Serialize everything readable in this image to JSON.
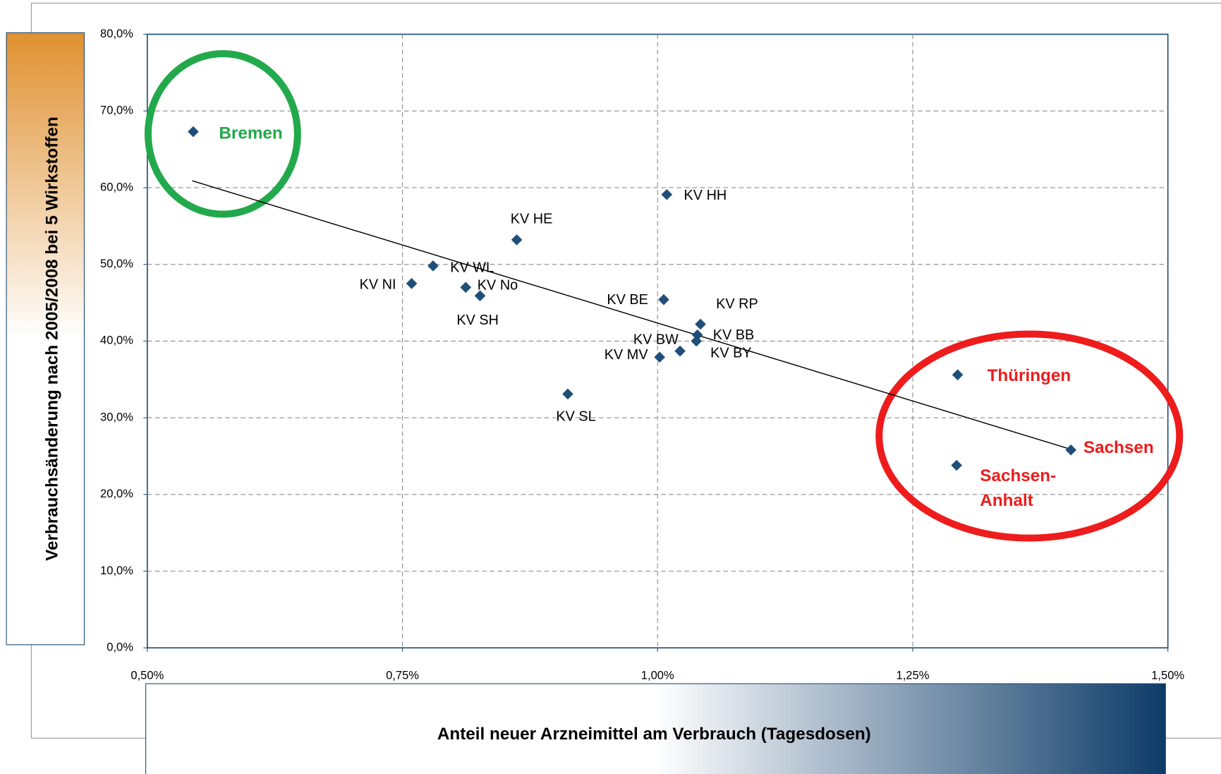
{
  "chart_data": {
    "type": "scatter",
    "x_label": "Anteil neuer Arzneimittel am Verbrauch (Tagesdosen)",
    "y_label": "Verbrauchsänderung nach 2005/2008 bei 5 Wirkstoffen",
    "labels": [
      "Bremen",
      "KV HH",
      "KV HE",
      "KV WL",
      "KV NI",
      "KV No",
      "KV SH",
      "KV BE",
      "KV RP",
      "KV BB",
      "KV BY",
      "KV BW",
      "KV MV",
      "KV SL",
      "Thüringen",
      "Sachsen",
      "Sachsen-\nAnhalt"
    ],
    "x": [
      0.545,
      1.009,
      0.862,
      0.78,
      0.759,
      0.812,
      0.826,
      1.006,
      1.042,
      1.039,
      1.038,
      1.022,
      1.002,
      0.912,
      1.294,
      1.405,
      1.293
    ],
    "y": [
      67.3,
      59.1,
      53.2,
      49.8,
      47.5,
      47.0,
      45.9,
      45.4,
      42.2,
      40.8,
      40.0,
      38.7,
      37.9,
      33.1,
      35.6,
      25.8,
      23.8
    ],
    "color": "#1f4e79",
    "label_colors": [
      "#22a94b",
      "#000000",
      "#000000",
      "#000000",
      "#000000",
      "#000000",
      "#000000",
      "#000000",
      "#000000",
      "#000000",
      "#000000",
      "#000000",
      "#000000",
      "#000000",
      "#ee1c1c",
      "#ee1c1c",
      "#ee1c1c"
    ],
    "trendline": {
      "x": [
        0.544,
        1.407
      ],
      "y": [
        60.9,
        25.8
      ],
      "color": "#000000"
    },
    "xlim": [
      0.5,
      1.5
    ],
    "xticks": [
      {
        "value": 0.5,
        "label": "0,50%"
      },
      {
        "value": 0.75,
        "label": "0,75%"
      },
      {
        "value": 1.0,
        "label": "1,00%"
      },
      {
        "value": 1.25,
        "label": "1,25%"
      },
      {
        "value": 1.5,
        "label": "1,50%"
      }
    ],
    "ylim": [
      0,
      80
    ],
    "yticks": [
      {
        "value": 0,
        "label": "0,0%"
      },
      {
        "value": 10,
        "label": "10,0%"
      },
      {
        "value": 20,
        "label": "20,0%"
      },
      {
        "value": 30,
        "label": "30,0%"
      },
      {
        "value": 40,
        "label": "40,0%"
      },
      {
        "value": 50,
        "label": "50,0%"
      },
      {
        "value": 60,
        "label": "60,0%"
      },
      {
        "value": 70,
        "label": "70,0%"
      },
      {
        "value": 80,
        "label": "80,0%"
      }
    ],
    "grid": true
  }
}
